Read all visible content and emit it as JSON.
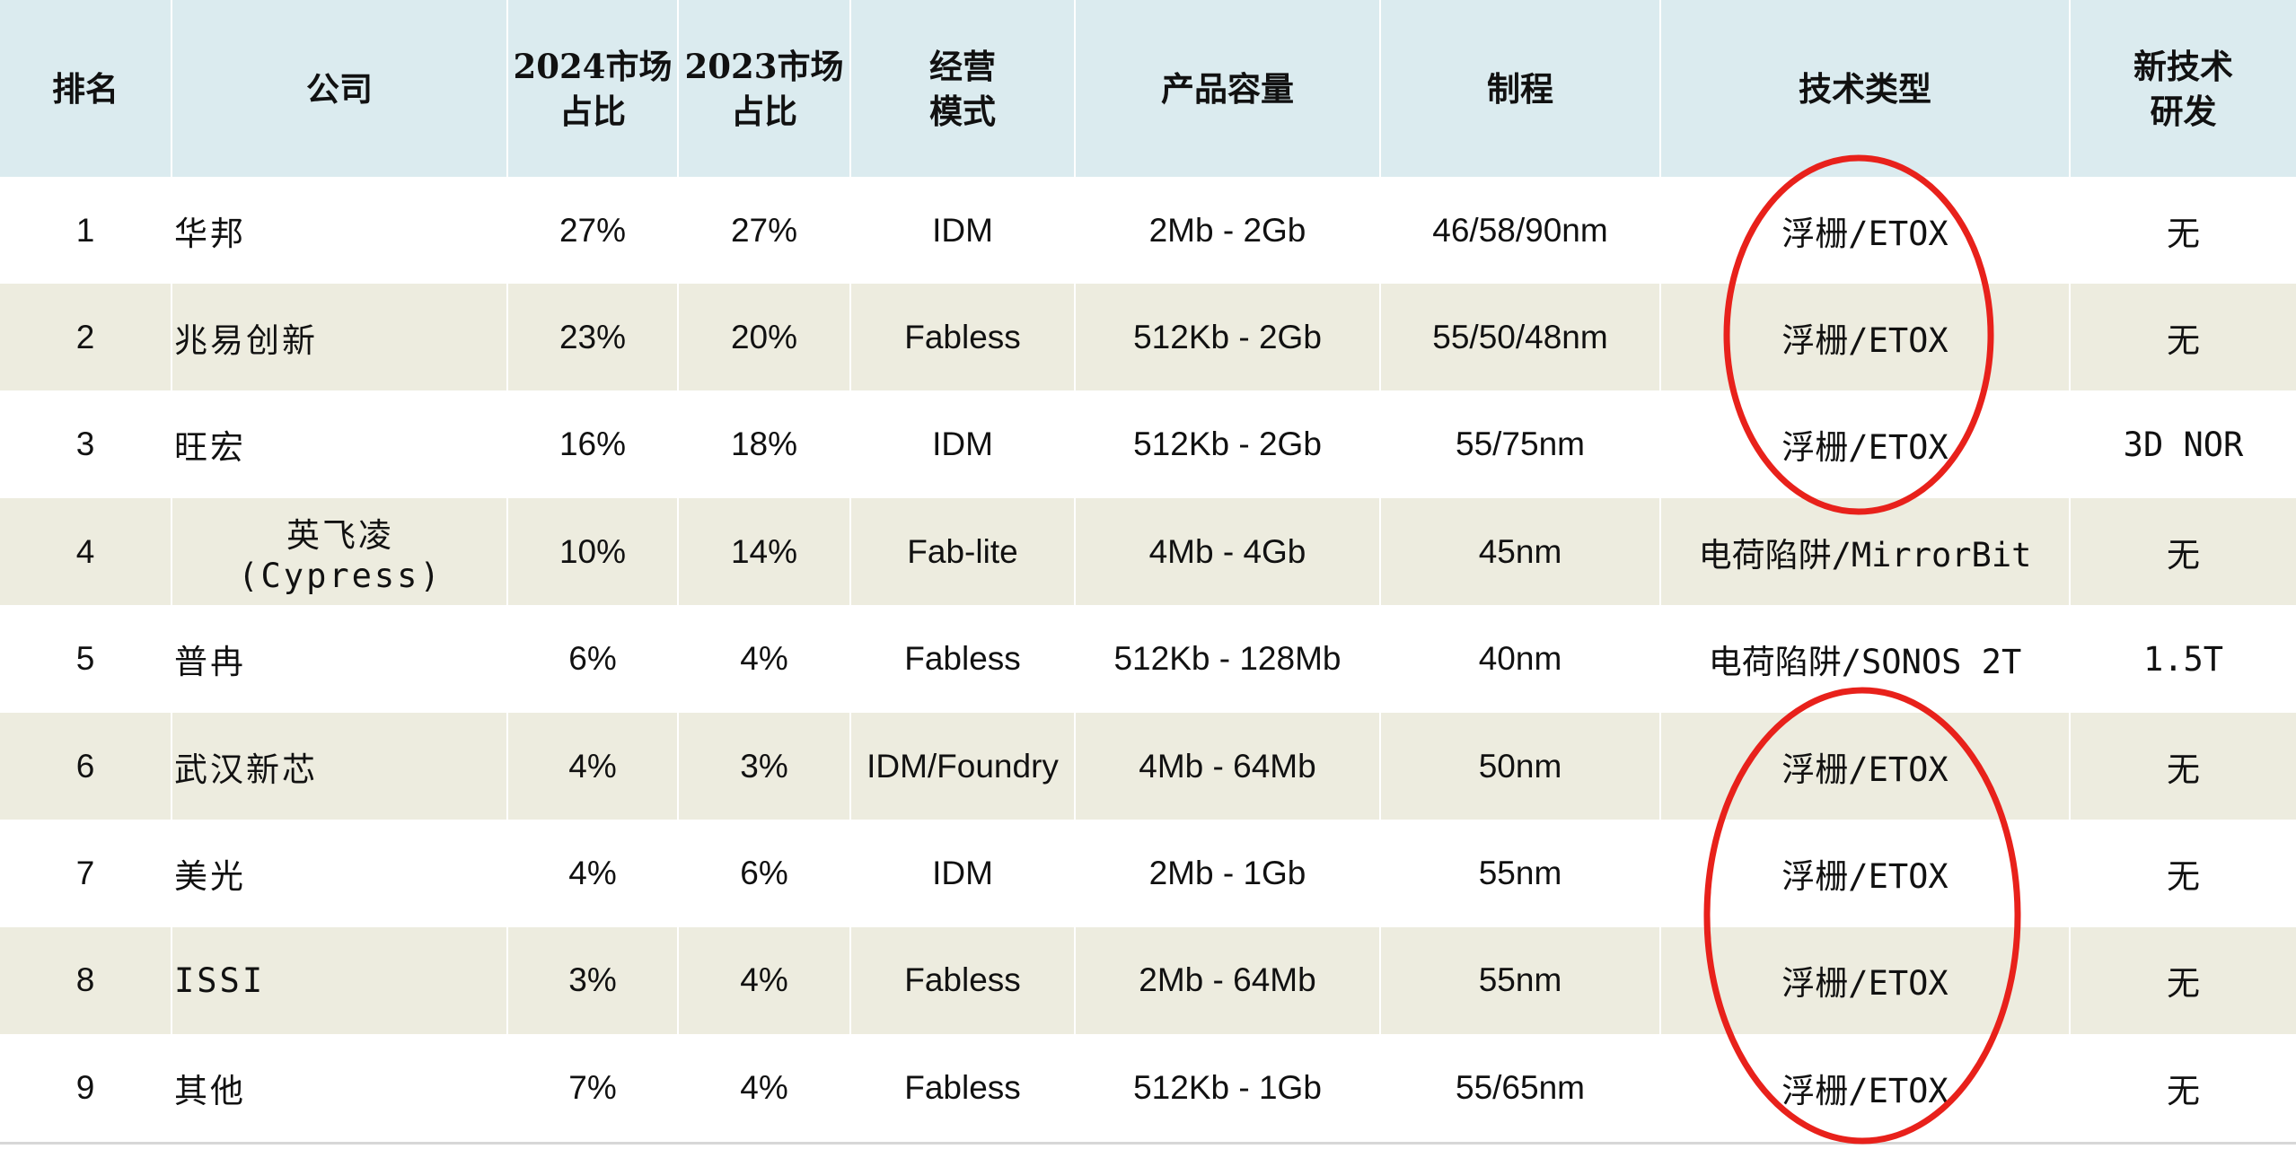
{
  "columns": [
    "排名",
    "公司",
    "2024市场\n占比",
    "2023市场\n占比",
    "经营\n模式",
    "产品容量",
    "制程",
    "技术类型",
    "新技术\n研发"
  ],
  "rows": [
    {
      "rank": "1",
      "company": "华邦",
      "share_2024": "27%",
      "share_2023": "27%",
      "model": "IDM",
      "capacity": "2Mb - 2Gb",
      "process": "46/58/90nm",
      "tech": "浮栅/ETOX",
      "new_tech": "无"
    },
    {
      "rank": "2",
      "company": "兆易创新",
      "share_2024": "23%",
      "share_2023": "20%",
      "model": "Fabless",
      "capacity": "512Kb - 2Gb",
      "process": "55/50/48nm",
      "tech": "浮栅/ETOX",
      "new_tech": "无"
    },
    {
      "rank": "3",
      "company": "旺宏",
      "share_2024": "16%",
      "share_2023": "18%",
      "model": "IDM",
      "capacity": "512Kb - 2Gb",
      "process": "55/75nm",
      "tech": "浮栅/ETOX",
      "new_tech": "3D NOR"
    },
    {
      "rank": "4",
      "company": "英飞凌 (Cypress)",
      "share_2024": "10%",
      "share_2023": "14%",
      "model": "Fab-lite",
      "capacity": "4Mb - 4Gb",
      "process": "45nm",
      "tech": "电荷陷阱/MirrorBit",
      "new_tech": "无"
    },
    {
      "rank": "5",
      "company": "普冉",
      "share_2024": "6%",
      "share_2023": "4%",
      "model": "Fabless",
      "capacity": "512Kb - 128Mb",
      "process": "40nm",
      "tech": "电荷陷阱/SONOS 2T",
      "new_tech": "1.5T"
    },
    {
      "rank": "6",
      "company": "武汉新芯",
      "share_2024": "4%",
      "share_2023": "3%",
      "model": "IDM/Foundry",
      "capacity": "4Mb - 64Mb",
      "process": "50nm",
      "tech": "浮栅/ETOX",
      "new_tech": "无"
    },
    {
      "rank": "7",
      "company": "美光",
      "share_2024": "4%",
      "share_2023": "6%",
      "model": "IDM",
      "capacity": "2Mb - 1Gb",
      "process": "55nm",
      "tech": "浮栅/ETOX",
      "new_tech": "无"
    },
    {
      "rank": "8",
      "company": "ISSI",
      "share_2024": "3%",
      "share_2023": "4%",
      "model": "Fabless",
      "capacity": "2Mb - 64Mb",
      "process": "55nm",
      "tech": "浮栅/ETOX",
      "new_tech": "无"
    },
    {
      "rank": "9",
      "company": "其他",
      "share_2024": "7%",
      "share_2023": "4%",
      "model": "Fabless",
      "capacity": "512Kb - 1Gb",
      "process": "55/65nm",
      "tech": "浮栅/ETOX",
      "new_tech": "无"
    }
  ],
  "highlight_color": "#e8211b",
  "header_bg": "#dbebef",
  "stripe_bg": "#edecdf"
}
